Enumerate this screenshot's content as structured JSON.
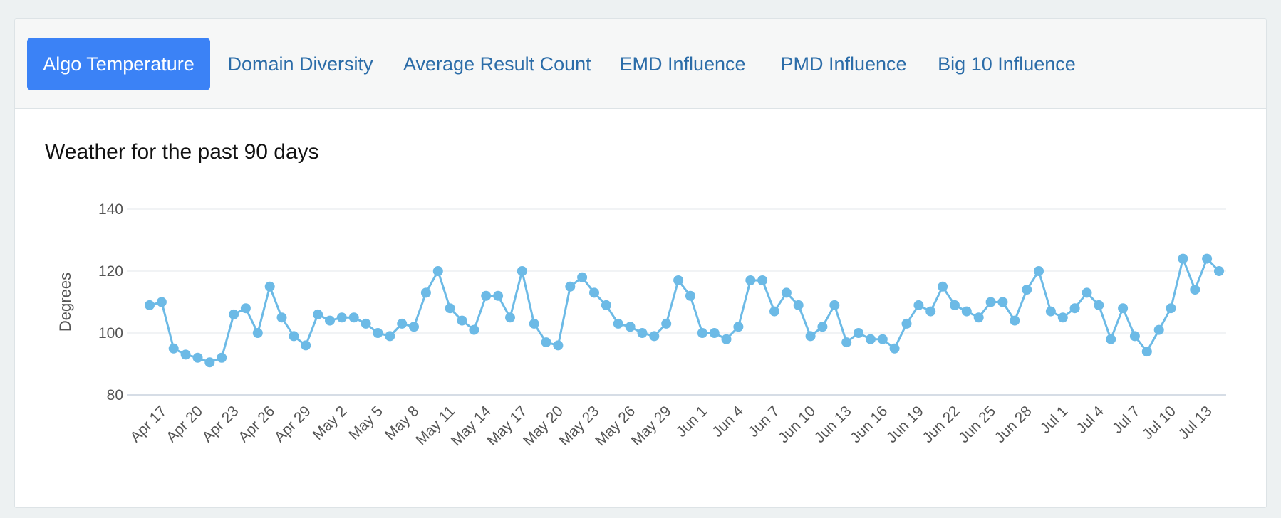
{
  "tabs": [
    {
      "label": "Algo Temperature",
      "active": true
    },
    {
      "label": "Domain Diversity",
      "active": false
    },
    {
      "label": "Average Result Count",
      "active": false
    },
    {
      "label": "EMD Influence",
      "active": false
    },
    {
      "label": "PMD Influence",
      "active": false
    },
    {
      "label": "Big 10 Influence",
      "active": false
    }
  ],
  "colors": {
    "active_tab": "#3b82f6",
    "tab_text": "#2b6ca8",
    "series": "#6cbae6"
  },
  "chart_data": {
    "type": "line",
    "title": "Weather for the past 90 days",
    "xlabel": "",
    "ylabel": "Degrees",
    "ylim": [
      80,
      140
    ],
    "yticks": [
      80,
      100,
      120,
      140
    ],
    "grid": true,
    "x_tick_labels": [
      "Apr 17",
      "Apr 20",
      "Apr 23",
      "Apr 26",
      "Apr 29",
      "May 2",
      "May 5",
      "May 8",
      "May 11",
      "May 14",
      "May 17",
      "May 20",
      "May 23",
      "May 26",
      "May 29",
      "Jun 1",
      "Jun 4",
      "Jun 7",
      "Jun 10",
      "Jun 13",
      "Jun 16",
      "Jun 19",
      "Jun 22",
      "Jun 25",
      "Jun 28",
      "Jul 1",
      "Jul 4",
      "Jul 7",
      "Jul 10",
      "Jul 13"
    ],
    "series": [
      {
        "values": [
          109,
          110,
          95,
          93,
          92,
          90.5,
          92,
          106,
          108,
          100,
          115,
          105,
          99,
          96,
          106,
          104,
          105,
          105,
          103,
          100,
          99,
          103,
          102,
          113,
          120,
          108,
          104,
          101,
          112,
          112,
          105,
          120,
          103,
          97,
          96,
          115,
          118,
          113,
          109,
          103,
          102,
          100,
          99,
          103,
          117,
          112,
          100,
          100,
          98,
          102,
          117,
          117,
          107,
          113,
          109,
          99,
          102,
          109,
          97,
          100,
          98,
          98,
          95,
          103,
          109,
          107,
          115,
          109,
          107,
          105,
          110,
          110,
          104,
          114,
          120,
          107,
          105,
          108,
          113,
          109,
          98,
          108,
          99,
          94,
          101,
          108,
          124,
          114,
          124,
          120
        ]
      }
    ]
  }
}
